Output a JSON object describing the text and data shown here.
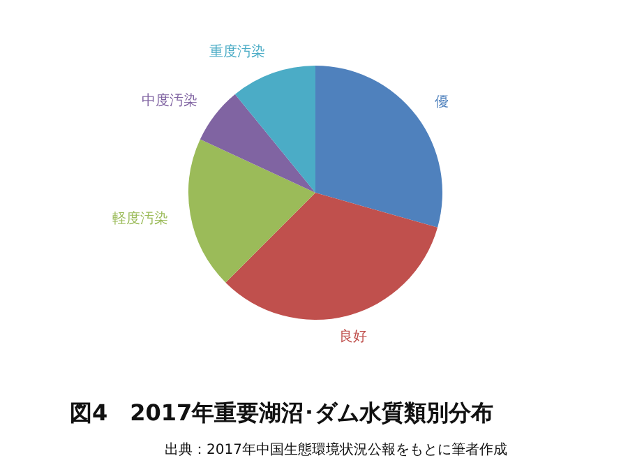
{
  "chart_data": {
    "type": "pie",
    "title": "図4　2017年重要湖沼･ダム水質類別分布",
    "categories": [
      "優",
      "良好",
      "軽度汚染",
      "中度汚染",
      "重度汚染"
    ],
    "values": [
      29.4,
      33.1,
      19.4,
      7.2,
      10.9
    ],
    "colors": [
      "#4f81bd",
      "#c0504d",
      "#9bbb59",
      "#8064a2",
      "#4bacc6"
    ],
    "legend": false,
    "annotations": [
      "出典：2017年中国生態環境状況公報をもとに筆者作成"
    ]
  }
}
